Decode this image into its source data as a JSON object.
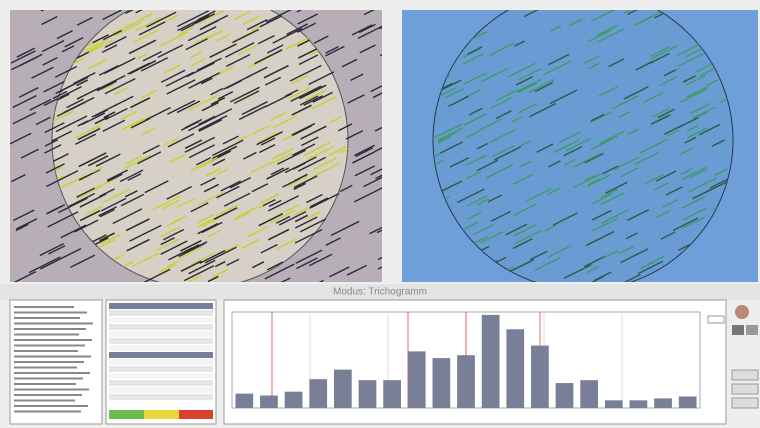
{
  "header": {
    "title": "Modus: Trichogramm"
  },
  "chart_data": {
    "type": "bar",
    "categories": [
      null,
      null,
      null,
      null,
      null,
      null,
      null,
      null,
      null,
      null,
      null,
      null,
      null,
      null,
      null,
      null,
      null,
      null,
      null
    ],
    "values": [
      15,
      13,
      17,
      30,
      40,
      29,
      29,
      59,
      52,
      55,
      97,
      82,
      65,
      26,
      29,
      8,
      8,
      10,
      12
    ],
    "color": "#7a7f98",
    "ylim": [
      0,
      100
    ],
    "grid": true
  }
}
